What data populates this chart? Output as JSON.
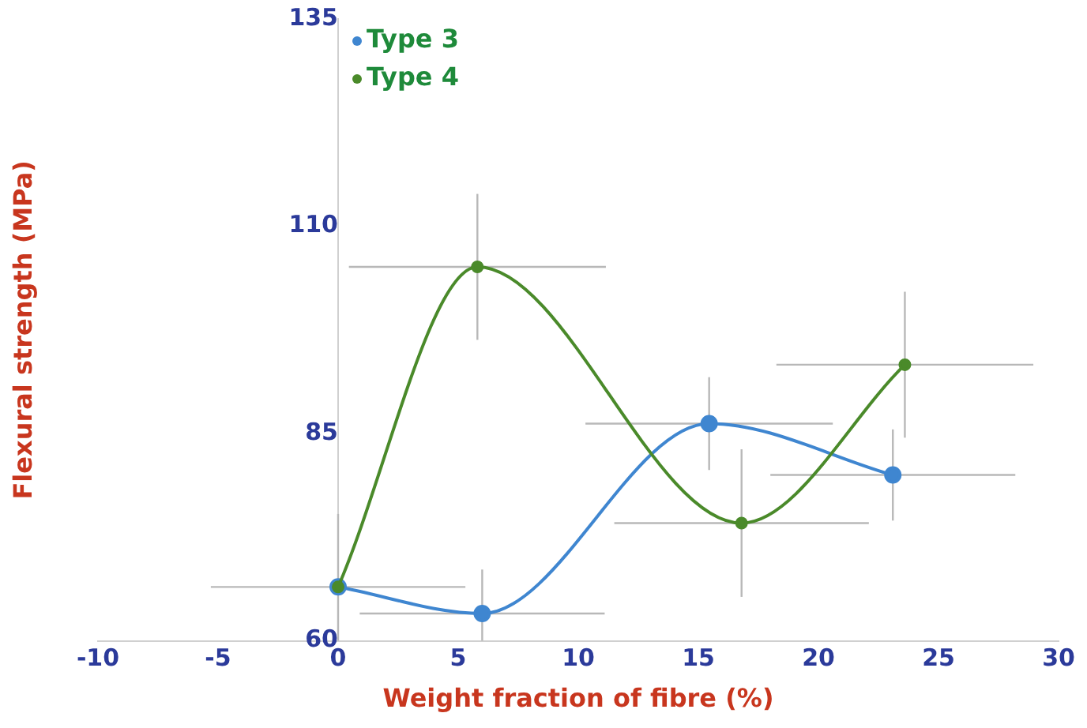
{
  "chart_data": {
    "type": "line",
    "xlabel": "Weight fraction of fibre (%)",
    "ylabel": "Flexural strength (MPa)",
    "xlim": [
      -10,
      30
    ],
    "xticks": [
      -10,
      -5,
      0,
      5,
      10,
      15,
      20,
      25,
      30
    ],
    "ylim": [
      60,
      135
    ],
    "yticks": [
      60,
      85,
      110,
      135
    ],
    "grid": false,
    "legend": "top left",
    "marker": "circle",
    "series": [
      {
        "name": "Type 3",
        "color": "#3f86d0",
        "x": [
          0,
          6.0,
          15.45,
          23.1
        ],
        "values": [
          66.5,
          63.3,
          86.2,
          80
        ],
        "errors": [
          null,
          [
            60,
            68.6
          ],
          5.6,
          5.5
        ],
        "xerrors": [
          null,
          5.1,
          5.15,
          5.1
        ]
      },
      {
        "name": "Type 4",
        "color": "#4a8a2a",
        "x": [
          0,
          5.8,
          16.8,
          23.6
        ],
        "values": [
          66.5,
          105.1,
          74.2,
          93.3
        ],
        "errors": [
          [
            60,
            75.3
          ],
          8.8,
          8.9,
          8.8
        ],
        "xerrors": [
          5.3,
          5.35,
          5.3,
          5.35
        ]
      }
    ]
  }
}
